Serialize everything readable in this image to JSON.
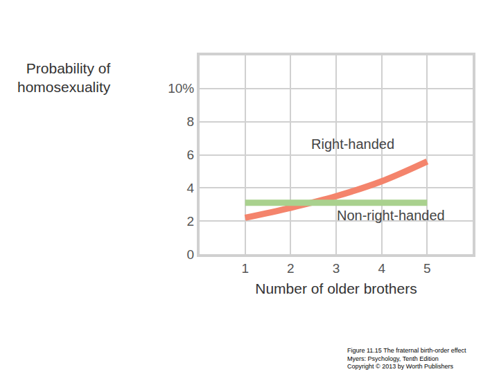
{
  "chart_data": {
    "type": "line",
    "y_label": [
      "Probability of",
      "homosexuality"
    ],
    "x_label": "Number of older brothers",
    "x": [
      1,
      2,
      3,
      4,
      5
    ],
    "series": [
      {
        "name": "Right-handed",
        "color": "#f4846c",
        "values": [
          2.2,
          2.8,
          3.5,
          4.4,
          5.6
        ]
      },
      {
        "name": "Non-right-handed",
        "color": "#a9d18e",
        "values": [
          3.1,
          3.1,
          3.1,
          3.1,
          3.1
        ]
      }
    ],
    "xlim": [
      0,
      6
    ],
    "xticks": [
      1,
      2,
      3,
      4,
      5
    ],
    "ylim": [
      0,
      12
    ],
    "yticks": [
      0,
      2,
      4,
      6,
      8,
      {
        "value": 10,
        "label": "10%"
      }
    ],
    "grid": true,
    "caption": [
      "Figure 11.15 The fraternal birth-order effect",
      "Myers: Psychology, Tenth Edition",
      "Copyright © 2013 by Worth Publishers"
    ]
  }
}
